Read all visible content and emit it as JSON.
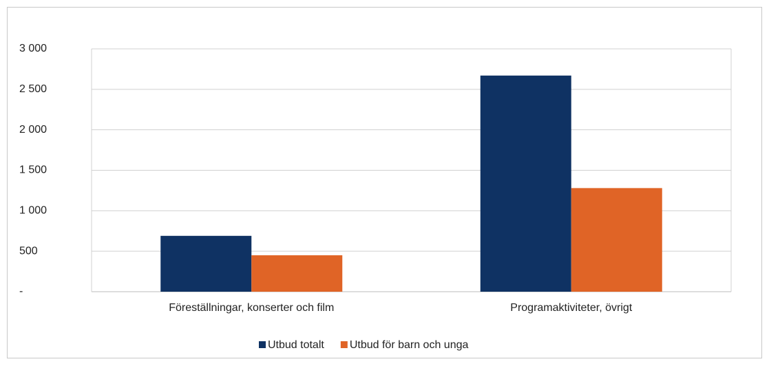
{
  "chart_data": {
    "type": "bar",
    "categories": [
      "Föreställningar, konserter och film",
      "Programaktiviteter, övrigt"
    ],
    "series": [
      {
        "name": "Utbud totalt",
        "color": "#0f3263",
        "values": [
          690,
          2670
        ]
      },
      {
        "name": "Utbud för barn och unga",
        "color": "#e06426",
        "values": [
          450,
          1280
        ]
      }
    ],
    "ylim": [
      0,
      3000
    ],
    "yticks": [
      {
        "value": 0,
        "label": "-"
      },
      500,
      {
        "value": 1000,
        "label": "1 000"
      },
      {
        "value": 1500,
        "label": "1 500"
      },
      {
        "value": 2000,
        "label": "2 000"
      },
      {
        "value": 2500,
        "label": "2 500"
      },
      {
        "value": 3000,
        "label": "3 000"
      }
    ],
    "grid": true,
    "legend": "bottom"
  }
}
